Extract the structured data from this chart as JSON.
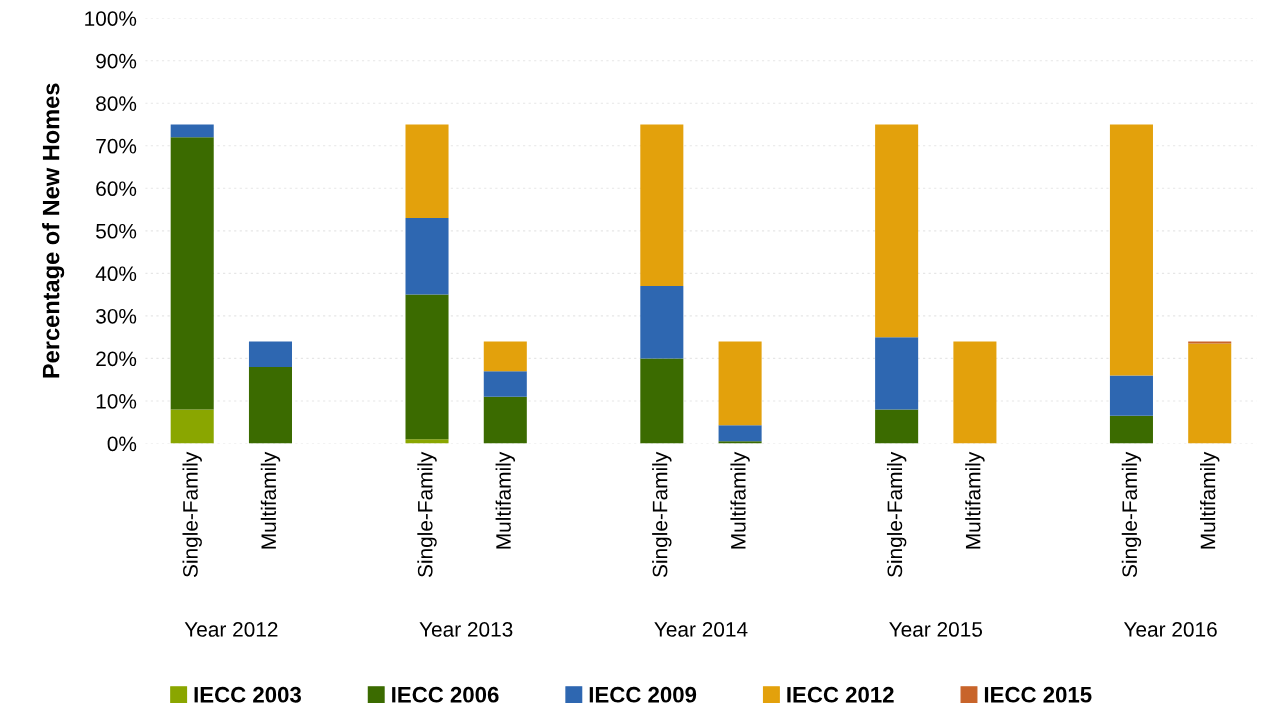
{
  "chart_data": {
    "type": "bar",
    "stacked": true,
    "ylabel": "Percentage of New Homes",
    "categories": [
      "Single-Family",
      "Multifamily",
      null,
      "Single-Family",
      "Multifamily",
      null,
      "Single-Family",
      "Multifamily",
      null,
      "Single-Family",
      "Multifamily",
      null,
      "Single-Family",
      "Multifamily"
    ],
    "series": [
      {
        "name": "IECC 2003",
        "color": "#8aa600",
        "values": [
          8,
          0,
          null,
          1,
          0,
          null,
          0,
          0,
          null,
          0,
          0,
          null,
          0,
          0
        ]
      },
      {
        "name": "IECC 2006",
        "color": "#3b6b00",
        "values": [
          64,
          18,
          null,
          34,
          11,
          null,
          20,
          0.5,
          null,
          8,
          0,
          null,
          6.5,
          0
        ]
      },
      {
        "name": "IECC 2009",
        "color": "#2e67b1",
        "values": [
          3,
          6,
          null,
          18,
          6,
          null,
          17,
          3.8,
          null,
          17,
          0,
          null,
          9.5,
          0
        ]
      },
      {
        "name": "IECC 2012",
        "color": "#e3a10c",
        "values": [
          0,
          0,
          null,
          22,
          7,
          null,
          38,
          19.7,
          null,
          50,
          24,
          null,
          59,
          23.5
        ]
      },
      {
        "name": "IECC 2015",
        "color": "#c8642a",
        "values": [
          0,
          0,
          null,
          0,
          0,
          null,
          0,
          0,
          null,
          0,
          0,
          null,
          0,
          0.5
        ]
      }
    ],
    "annotations": [
      "Year 2012",
      "Year 2013",
      "Year 2014",
      "Year 2015",
      "Year 2016"
    ],
    "ylim": [
      0,
      100
    ],
    "yticks": [
      {
        "value": 0,
        "label": "0%"
      },
      {
        "value": 10,
        "label": "10%"
      },
      {
        "value": 20,
        "label": "20%"
      },
      {
        "value": 30,
        "label": "30%"
      },
      {
        "value": 40,
        "label": "40%"
      },
      {
        "value": 50,
        "label": "50%"
      },
      {
        "value": 60,
        "label": "60%"
      },
      {
        "value": 70,
        "label": "70%"
      },
      {
        "value": 80,
        "label": "80%"
      },
      {
        "value": 90,
        "label": "90%"
      },
      {
        "value": 100,
        "label": "100%"
      }
    ],
    "grid": "y",
    "legend": "bottom"
  }
}
